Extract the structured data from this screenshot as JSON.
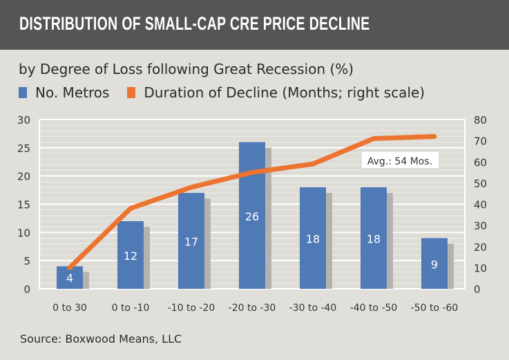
{
  "header": {
    "title": "DISTRIBUTION OF SMALL-CAP CRE PRICE DECLINE"
  },
  "source": "Source: Boxwood Means, LLC",
  "colors": {
    "bar": "#4f7ab5",
    "bar_shadow": "#b3b2ae",
    "line": "#ec7430",
    "header_bg": "#555555",
    "background": "#e1dfd9"
  },
  "chart_data": {
    "type": "bar",
    "title": "DISTRIBUTION OF SMALL-CAP CRE PRICE DECLINE",
    "subtitle": "by Degree of Loss following Great Recession (%)",
    "categories": [
      "0 to 30",
      "0 to -10",
      "-10 to -20",
      "-20 to -30",
      "-30 to -40",
      "-40 to -50",
      "-50 to -60"
    ],
    "series": [
      {
        "name": "No. Metros",
        "type": "bar",
        "axis": "left",
        "values": [
          4,
          12,
          17,
          26,
          18,
          18,
          9
        ],
        "data_labels": [
          "4",
          "12",
          "17",
          "26",
          "18",
          "18",
          "9"
        ]
      },
      {
        "name": "Duration of Decline (Months; right scale)",
        "type": "line",
        "axis": "right",
        "values": [
          10,
          38,
          48,
          55,
          59,
          71,
          72
        ]
      }
    ],
    "ylim_left": [
      0,
      30
    ],
    "yticks_left": [
      "0",
      "5",
      "10",
      "15",
      "20",
      "25",
      "30"
    ],
    "ylim_right": [
      0,
      80
    ],
    "yticks_right": [
      "0",
      "10",
      "20",
      "30",
      "40",
      "50",
      "60",
      "70",
      "80"
    ],
    "annotation": "Avg.: 54 Mos.",
    "grid": true,
    "legend": "top-left"
  }
}
